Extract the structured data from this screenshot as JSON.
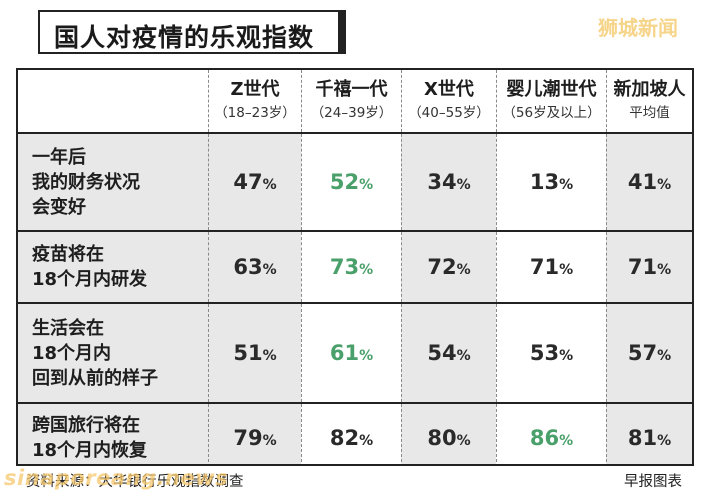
{
  "title": "国人对疫情的乐观指数",
  "watermark_top": "狮城新闻",
  "watermark_bottom": "sinaporeang.news",
  "footer": {
    "source": "资料来源：大华银行乐观指数调查",
    "credit": "早报图表"
  },
  "highlight_color": "#4aa06a",
  "chart_data": {
    "type": "table",
    "unit": "%",
    "columns": [
      {
        "name": "Z世代",
        "sub": "（18–23岁）"
      },
      {
        "name": "千禧一代",
        "sub": "（24–39岁）"
      },
      {
        "name": "X世代",
        "sub": "（40–55岁）"
      },
      {
        "name": "婴儿潮世代",
        "sub": "（56岁及以上）"
      },
      {
        "name": "新加坡人",
        "sub": "平均值"
      }
    ],
    "rows": [
      {
        "label": [
          "一年后",
          "我的财务状况",
          "会变好"
        ],
        "values": [
          47,
          52,
          34,
          13,
          41
        ],
        "highlight": 1
      },
      {
        "label": [
          "疫苗将在",
          "18个月内研发"
        ],
        "values": [
          63,
          73,
          72,
          71,
          71
        ],
        "highlight": 1
      },
      {
        "label": [
          "生活会在",
          "18个月内",
          "回到从前的样子"
        ],
        "values": [
          51,
          61,
          54,
          53,
          57
        ],
        "highlight": 1
      },
      {
        "label": [
          "跨国旅行将在",
          "18个月内恢复"
        ],
        "values": [
          79,
          82,
          80,
          86,
          81
        ],
        "highlight": 3
      }
    ]
  }
}
